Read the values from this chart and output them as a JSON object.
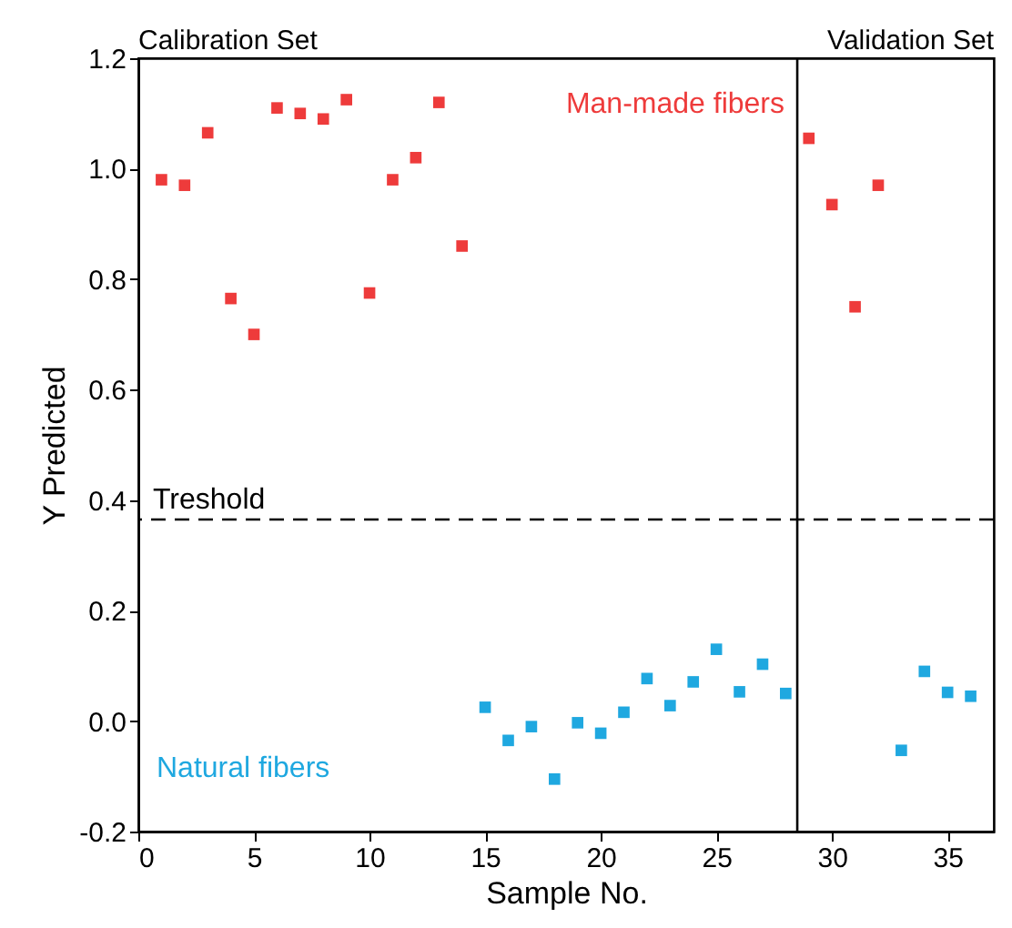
{
  "chart_data": {
    "type": "scatter",
    "xlabel": "Sample No.",
    "ylabel": "Y Predicted",
    "xlim": [
      0,
      37
    ],
    "xticks": [
      0,
      5,
      10,
      15,
      20,
      25,
      30,
      35
    ],
    "ylim": [
      -0.2,
      1.2
    ],
    "yticks": [
      {
        "value": -0.2,
        "label": "-0.2"
      },
      {
        "value": 0,
        "label": "0.0"
      },
      {
        "value": 0.2,
        "label": "0.2"
      },
      {
        "value": 0.4,
        "label": "0.4"
      },
      {
        "value": 0.6,
        "label": "0.6"
      },
      {
        "value": 0.8,
        "label": "0.8"
      },
      {
        "value": 1.0,
        "label": "1.0"
      },
      {
        "value": 1.2,
        "label": "1.2"
      }
    ],
    "grid": false,
    "legend": false,
    "marker": "square",
    "series": [
      {
        "name": "Man-made fibers",
        "color": "#ee3b3b",
        "x": [
          1,
          2,
          3,
          4,
          5,
          6,
          7,
          8,
          9,
          10,
          11,
          12,
          13,
          14,
          29,
          30,
          31,
          32
        ],
        "values": [
          0.98,
          0.97,
          1.065,
          0.765,
          0.7,
          1.11,
          1.1,
          1.09,
          1.125,
          0.775,
          0.98,
          1.02,
          1.12,
          0.86,
          1.055,
          0.935,
          0.75,
          0.97
        ]
      },
      {
        "name": "Natural fibers",
        "color": "#1fa8e0",
        "x": [
          15,
          16,
          17,
          18,
          19,
          20,
          21,
          22,
          23,
          24,
          25,
          26,
          27,
          28,
          33,
          34,
          35,
          36
        ],
        "values": [
          0.025,
          -0.035,
          -0.01,
          -0.105,
          -0.003,
          -0.022,
          0.016,
          0.077,
          0.028,
          0.071,
          0.13,
          0.053,
          0.103,
          0.05,
          -0.053,
          0.09,
          0.052,
          0.045
        ]
      }
    ],
    "ref_lines": [
      {
        "axis": "y",
        "value": 0.365,
        "label": "Treshold",
        "color": "#000000",
        "line_style": "dashed"
      },
      {
        "axis": "x",
        "value": 28.5,
        "color": "#000000",
        "line_style": "solid"
      }
    ],
    "annotations": [
      "Calibration Set",
      "Validation Set"
    ]
  }
}
